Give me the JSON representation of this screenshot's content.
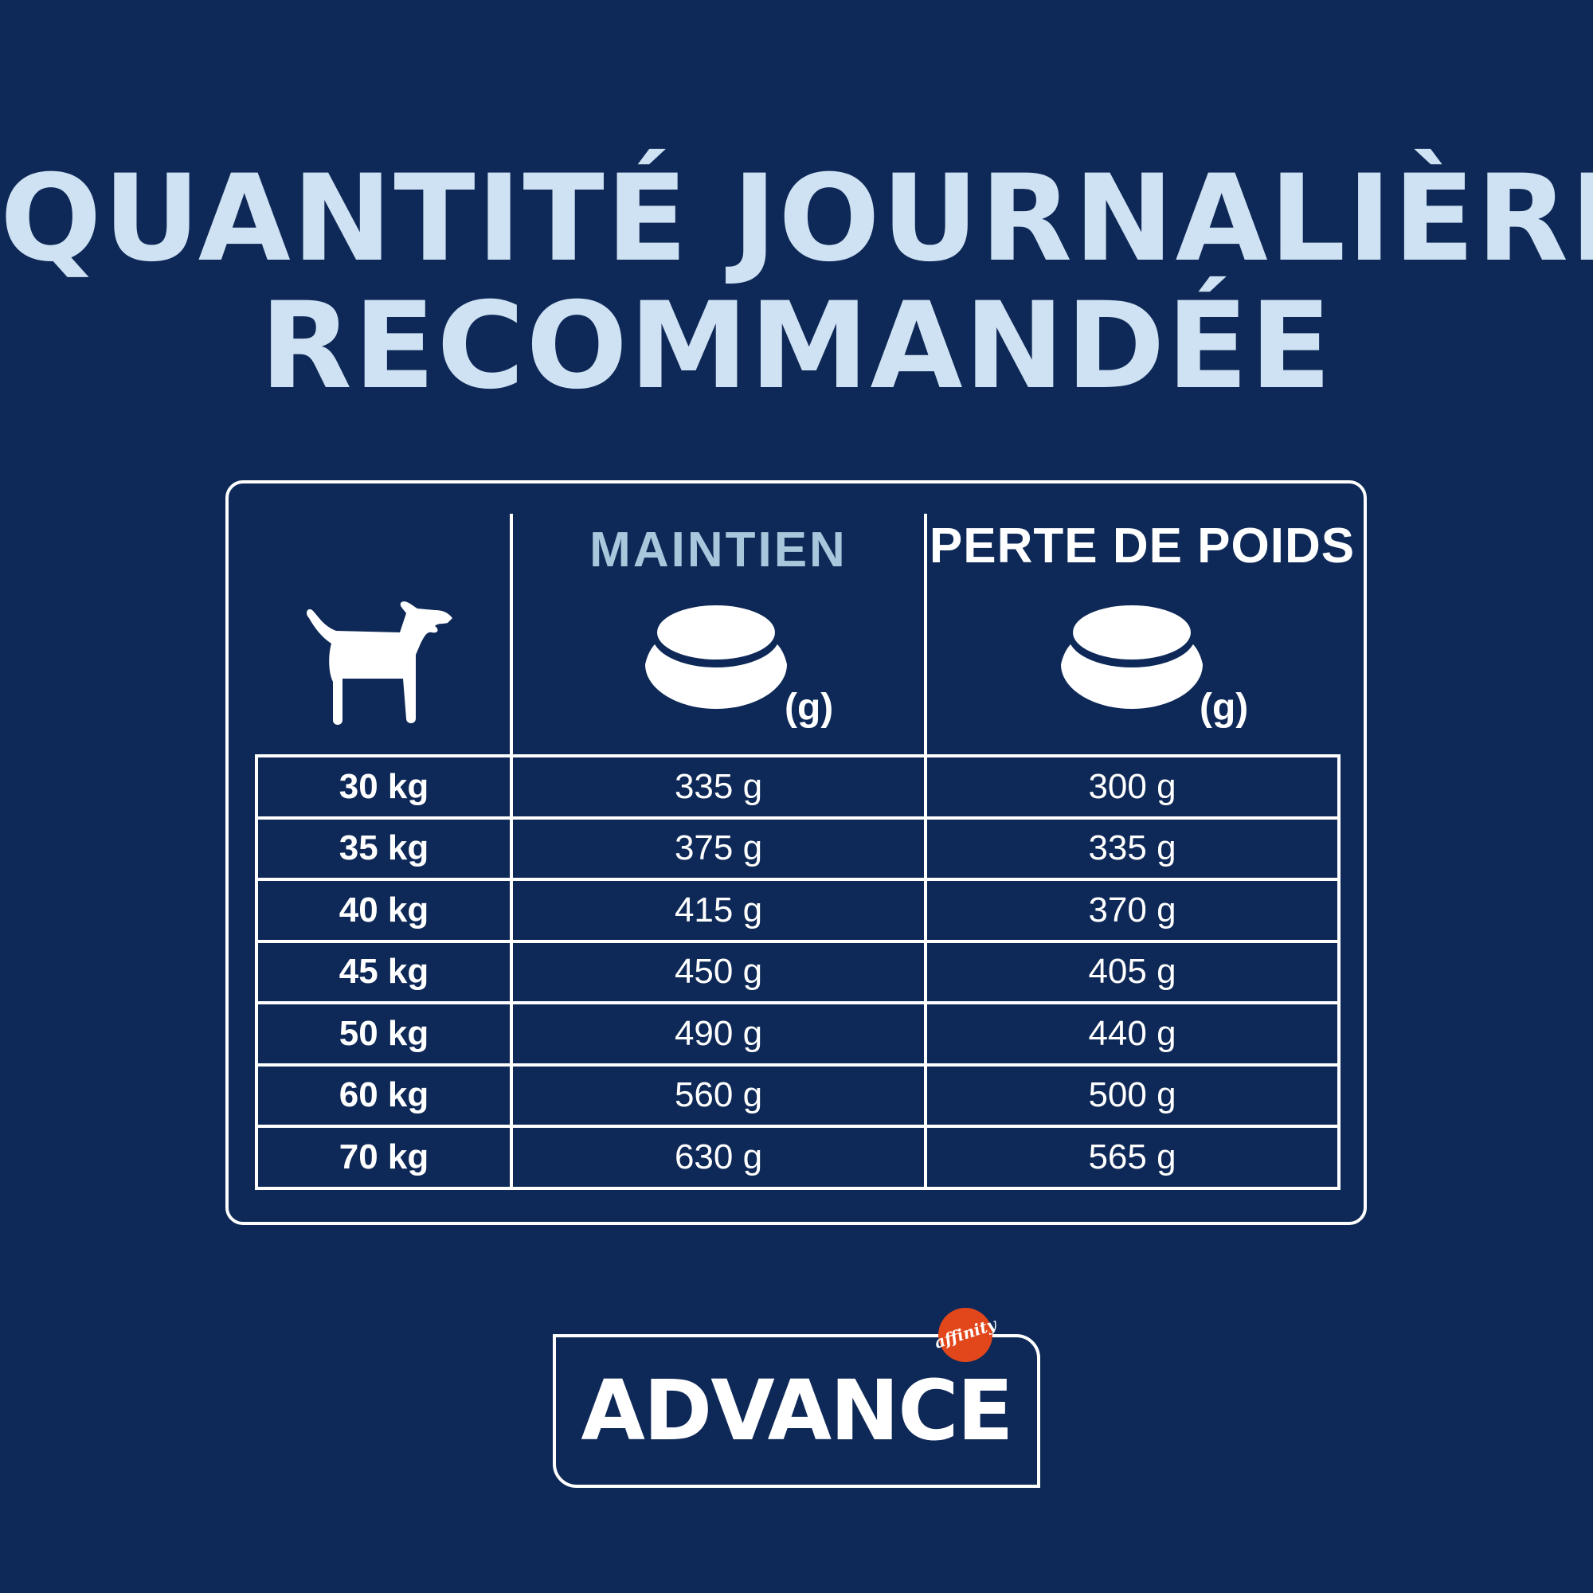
{
  "title": {
    "line1": "QUANTITÉ JOURNALIÈRE",
    "line2": "RECOMMANDÉE"
  },
  "table": {
    "headers": {
      "weight_icon": "dog-icon",
      "maintenance": "MAINTIEN",
      "weight_loss": "PERTE DE POIDS",
      "bowl_icon": "food-bowl-icon",
      "unit": "(g)"
    },
    "rows": [
      {
        "weight": "30 kg",
        "maintenance": "335 g",
        "weight_loss": "300 g"
      },
      {
        "weight": "35 kg",
        "maintenance": "375 g",
        "weight_loss": "335 g"
      },
      {
        "weight": "40 kg",
        "maintenance": "415 g",
        "weight_loss": "370 g"
      },
      {
        "weight": "45 kg",
        "maintenance": "450 g",
        "weight_loss": "405 g"
      },
      {
        "weight": "50 kg",
        "maintenance": "490 g",
        "weight_loss": "440 g"
      },
      {
        "weight": "60 kg",
        "maintenance": "560 g",
        "weight_loss": "500 g"
      },
      {
        "weight": "70 kg",
        "maintenance": "630 g",
        "weight_loss": "565 g"
      }
    ]
  },
  "brand": {
    "name": "ADVANCE",
    "badge": "affinity"
  },
  "colors": {
    "background": "#0e2957",
    "title": "#cfe2f3",
    "maintenance_header": "#a9c7dc",
    "text": "#ffffff",
    "badge": "#e2471c"
  }
}
